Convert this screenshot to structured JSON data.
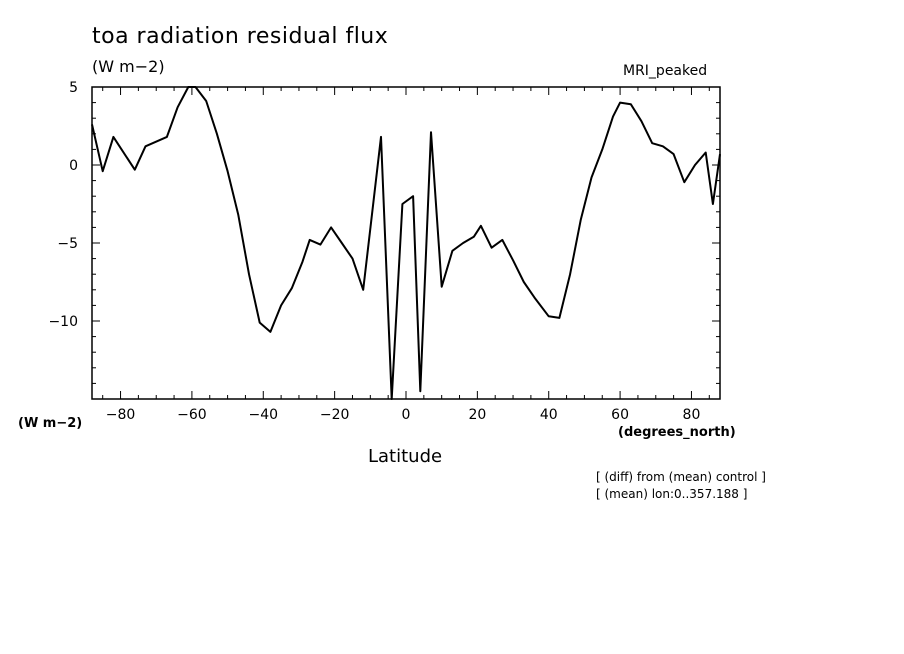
{
  "header": {
    "title": "toa radiation residual flux",
    "units_top": "(W m−2)",
    "model": "MRI_peaked"
  },
  "axes": {
    "y_units_label": "(W m−2)",
    "x_units_label": "(degrees_north)",
    "x_title": "Latitude"
  },
  "notes": {
    "line1": "[ (diff) from (mean) control ]",
    "line2": "[ (mean) lon:0..357.188 ]"
  },
  "chart_data": {
    "type": "line",
    "title": "toa radiation residual flux",
    "xlabel": "Latitude",
    "ylabel": "(W m−2)",
    "xlim": [
      -88,
      88
    ],
    "ylim": [
      -15,
      5
    ],
    "x_ticks": [
      -80,
      -60,
      -40,
      -20,
      0,
      20,
      40,
      60,
      80
    ],
    "x_tick_labels": [
      "−80",
      "−60",
      "−40",
      "−20",
      "0",
      "20",
      "40",
      "60",
      "80"
    ],
    "y_ticks": [
      -10,
      -5,
      0,
      5
    ],
    "y_tick_labels": [
      "−10",
      "−5",
      "0",
      "5"
    ],
    "grid": false,
    "series": [
      {
        "name": "MRI_peaked",
        "color": "#000000",
        "x": [
          -88,
          -85,
          -82,
          -76,
          -73,
          -67,
          -64,
          -61,
          -59,
          -56,
          -53,
          -50,
          -47,
          -44,
          -41,
          -38,
          -35,
          -32,
          -29,
          -27,
          -24,
          -21,
          -18,
          -15,
          -12,
          -7,
          -4,
          -1,
          2,
          4,
          7,
          10,
          13,
          16,
          19,
          21,
          24,
          27,
          30,
          33,
          36,
          40,
          43,
          46,
          49,
          52,
          55,
          58,
          60,
          63,
          66,
          69,
          72,
          75,
          78,
          81,
          84,
          86,
          88
        ],
        "y": [
          2.6,
          -0.4,
          1.8,
          -0.3,
          1.2,
          1.8,
          3.7,
          5.0,
          5.0,
          4.1,
          2.0,
          -0.4,
          -3.2,
          -7.0,
          -10.1,
          -10.7,
          -9.0,
          -7.9,
          -6.2,
          -4.8,
          -5.1,
          -4.0,
          -5.0,
          -6.0,
          -8.0,
          1.8,
          -15.0,
          -2.5,
          -2.0,
          -14.5,
          2.1,
          -7.8,
          -5.5,
          -5.0,
          -4.6,
          -3.9,
          -5.3,
          -4.8,
          -6.1,
          -7.5,
          -8.5,
          -9.7,
          -9.8,
          -7.0,
          -3.5,
          -0.8,
          1.0,
          3.1,
          4.0,
          3.9,
          2.8,
          1.4,
          1.2,
          0.7,
          -1.1,
          0.0,
          0.8,
          -2.5,
          0.7
        ]
      }
    ]
  }
}
